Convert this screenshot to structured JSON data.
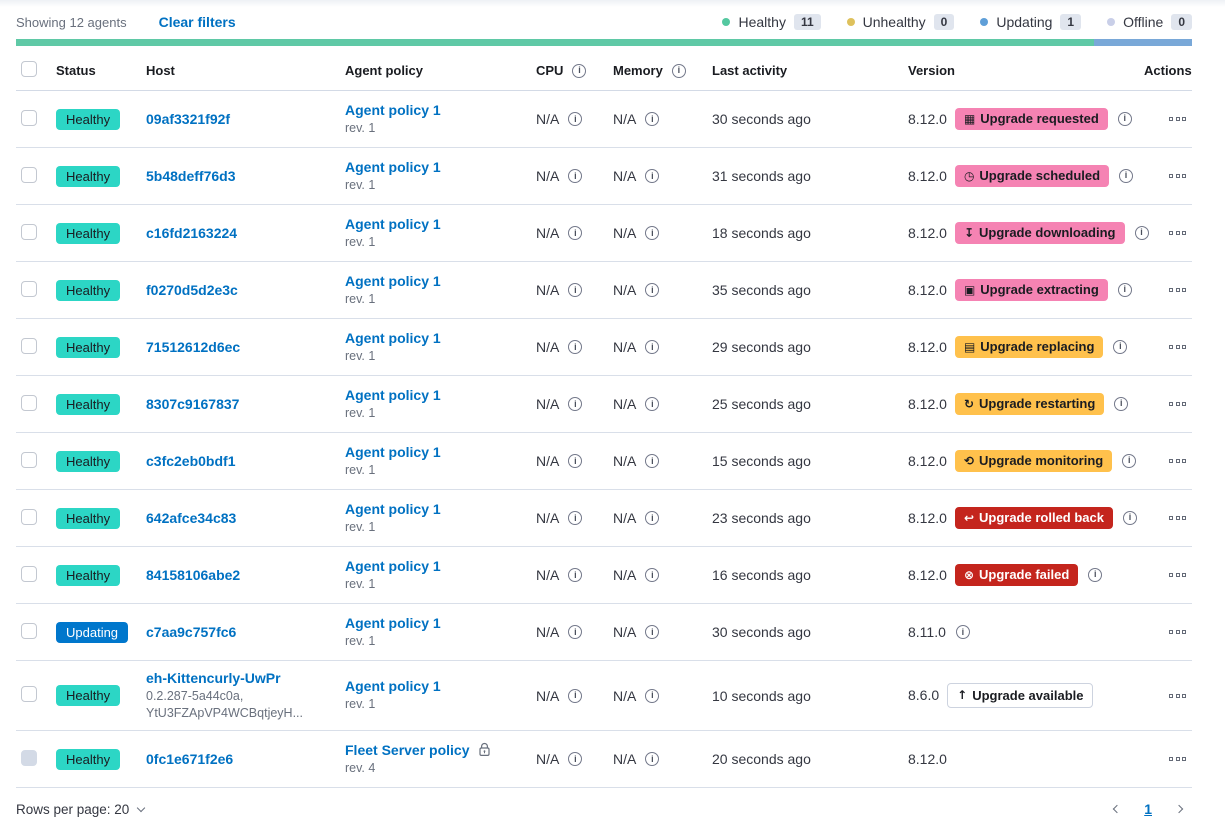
{
  "colors": {
    "link": "#0071C2",
    "healthy-badge": "#2CD6C5",
    "updating-badge": "#0077CC",
    "pink-badge": "#F583B3",
    "yellow-badge": "#FFC14C",
    "red-badge": "#C4251D"
  },
  "header": {
    "showing": "Showing 12 agents",
    "clear_filters": "Clear filters",
    "legend": [
      {
        "label": "Healthy",
        "count": "11",
        "color": "#54C8A0"
      },
      {
        "label": "Unhealthy",
        "count": "0",
        "color": "#DEC15C"
      },
      {
        "label": "Updating",
        "count": "1",
        "color": "#5F9FD8"
      },
      {
        "label": "Offline",
        "count": "0",
        "color": "#C9CFE8"
      }
    ]
  },
  "health_bar": {
    "segments": [
      {
        "status": "healthy",
        "color": "#5FC9A6",
        "fraction": 0.9167
      },
      {
        "status": "updating",
        "color": "#79A8D8",
        "fraction": 0.0833
      }
    ]
  },
  "table": {
    "columns": [
      "Status",
      "Host",
      "Agent policy",
      "CPU",
      "Memory",
      "Last activity",
      "Version",
      "Actions"
    ],
    "rows": [
      {
        "status": "Healthy",
        "host": "09af3321f92f",
        "policy": "Agent policy 1",
        "policy_rev": "rev. 1",
        "cpu": "N/A",
        "memory": "N/A",
        "last_activity": "30 seconds ago",
        "version": "8.12.0",
        "upgrade_badge": {
          "label": "Upgrade requested",
          "icon": "calendar-icon",
          "style": "pink"
        },
        "version_info_icon": true
      },
      {
        "status": "Healthy",
        "host": "5b48deff76d3",
        "policy": "Agent policy 1",
        "policy_rev": "rev. 1",
        "cpu": "N/A",
        "memory": "N/A",
        "last_activity": "31 seconds ago",
        "version": "8.12.0",
        "upgrade_badge": {
          "label": "Upgrade scheduled",
          "icon": "clock-icon",
          "style": "pink"
        },
        "version_info_icon": true
      },
      {
        "status": "Healthy",
        "host": "c16fd2163224",
        "policy": "Agent policy 1",
        "policy_rev": "rev. 1",
        "cpu": "N/A",
        "memory": "N/A",
        "last_activity": "18 seconds ago",
        "version": "8.12.0",
        "upgrade_badge": {
          "label": "Upgrade downloading",
          "icon": "download-icon",
          "style": "pink"
        },
        "version_info_icon": true
      },
      {
        "status": "Healthy",
        "host": "f0270d5d2e3c",
        "policy": "Agent policy 1",
        "policy_rev": "rev. 1",
        "cpu": "N/A",
        "memory": "N/A",
        "last_activity": "35 seconds ago",
        "version": "8.12.0",
        "upgrade_badge": {
          "label": "Upgrade extracting",
          "icon": "package-icon",
          "style": "pink"
        },
        "version_info_icon": true
      },
      {
        "status": "Healthy",
        "host": "71512612d6ec",
        "policy": "Agent policy 1",
        "policy_rev": "rev. 1",
        "cpu": "N/A",
        "memory": "N/A",
        "last_activity": "29 seconds ago",
        "version": "8.12.0",
        "upgrade_badge": {
          "label": "Upgrade replacing",
          "icon": "document-icon",
          "style": "yellow"
        },
        "version_info_icon": true
      },
      {
        "status": "Healthy",
        "host": "8307c9167837",
        "policy": "Agent policy 1",
        "policy_rev": "rev. 1",
        "cpu": "N/A",
        "memory": "N/A",
        "last_activity": "25 seconds ago",
        "version": "8.12.0",
        "upgrade_badge": {
          "label": "Upgrade restarting",
          "icon": "refresh-icon",
          "style": "yellow"
        },
        "version_info_icon": true
      },
      {
        "status": "Healthy",
        "host": "c3fc2eb0bdf1",
        "policy": "Agent policy 1",
        "policy_rev": "rev. 1",
        "cpu": "N/A",
        "memory": "N/A",
        "last_activity": "15 seconds ago",
        "version": "8.12.0",
        "upgrade_badge": {
          "label": "Upgrade monitoring",
          "icon": "inspect-icon",
          "style": "yellow"
        },
        "version_info_icon": true
      },
      {
        "status": "Healthy",
        "host": "642afce34c83",
        "policy": "Agent policy 1",
        "policy_rev": "rev. 1",
        "cpu": "N/A",
        "memory": "N/A",
        "last_activity": "23 seconds ago",
        "version": "8.12.0",
        "upgrade_badge": {
          "label": "Upgrade rolled back",
          "icon": "return-icon",
          "style": "red"
        },
        "version_info_icon": true
      },
      {
        "status": "Healthy",
        "host": "84158106abe2",
        "policy": "Agent policy 1",
        "policy_rev": "rev. 1",
        "cpu": "N/A",
        "memory": "N/A",
        "last_activity": "16 seconds ago",
        "version": "8.12.0",
        "upgrade_badge": {
          "label": "Upgrade failed",
          "icon": "error-icon",
          "style": "red"
        },
        "version_info_icon": true
      },
      {
        "status": "Updating",
        "host": "c7aa9c757fc6",
        "policy": "Agent policy 1",
        "policy_rev": "rev. 1",
        "cpu": "N/A",
        "memory": "N/A",
        "last_activity": "30 seconds ago",
        "version": "8.11.0",
        "upgrade_badge": null,
        "version_info_icon": true
      },
      {
        "status": "Healthy",
        "host": "eh-Kittencurly-UwPr",
        "host_sub1": "0.2.287-5a44c0a,",
        "host_sub2": "YtU3FZApVP4WCBqtjeyH...",
        "policy": "Agent policy 1",
        "policy_rev": "rev. 1",
        "cpu": "N/A",
        "memory": "N/A",
        "last_activity": "10 seconds ago",
        "version": "8.6.0",
        "upgrade_badge": {
          "label": "Upgrade available",
          "icon": "up-arrow-icon",
          "style": "outline"
        },
        "version_info_icon": false
      },
      {
        "status": "Healthy",
        "host": "0fc1e671f2e6",
        "policy": "Fleet Server policy",
        "policy_rev": "rev. 4",
        "policy_locked": true,
        "checkbox_disabled": true,
        "cpu": "N/A",
        "memory": "N/A",
        "last_activity": "20 seconds ago",
        "version": "8.12.0",
        "upgrade_badge": null,
        "version_info_icon": false
      }
    ]
  },
  "footer": {
    "rows_per_page": "Rows per page: 20",
    "page": "1"
  }
}
